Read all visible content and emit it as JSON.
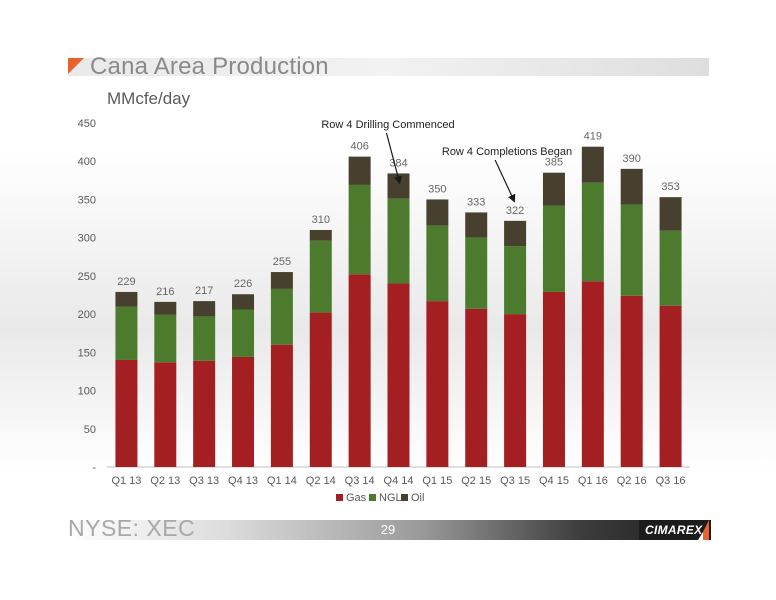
{
  "slide": {
    "title": "Cana Area Production",
    "subtitle": "MMcfe/day",
    "footer_ticker": "NYSE: XEC",
    "page_number": "29",
    "logo_text": "CIMAREX"
  },
  "colors": {
    "gas": "#a31f22",
    "ngl": "#4d7b2e",
    "oil": "#47402f",
    "axis_text": "#595959",
    "label_text": "#666666",
    "accent": "#e8622c"
  },
  "chart_data": {
    "type": "bar",
    "stacked": true,
    "categories": [
      "Q1 13",
      "Q2 13",
      "Q3 13",
      "Q4 13",
      "Q1 14",
      "Q2 14",
      "Q3 14",
      "Q4 14",
      "Q1 15",
      "Q2 15",
      "Q3 15",
      "Q4 15",
      "Q1 16",
      "Q2 16",
      "Q3 16"
    ],
    "series": [
      {
        "name": "Gas",
        "values": [
          140,
          137,
          139,
          144,
          160,
          202,
          252,
          240,
          217,
          207,
          200,
          229,
          243,
          224,
          211
        ]
      },
      {
        "name": "NGL",
        "values": [
          70,
          62,
          58,
          62,
          73,
          94,
          117,
          111,
          99,
          93,
          89,
          113,
          129,
          119,
          98
        ]
      },
      {
        "name": "Oil",
        "values": [
          19,
          17,
          20,
          20,
          22,
          14,
          37,
          33,
          34,
          33,
          33,
          43,
          47,
          47,
          44
        ]
      }
    ],
    "totals": [
      229,
      216,
      217,
      226,
      255,
      310,
      406,
      384,
      350,
      333,
      322,
      385,
      419,
      390,
      353
    ],
    "ylim": [
      0,
      450
    ],
    "yticks": [
      {
        "value": 0,
        "label": "-"
      },
      {
        "value": 50,
        "label": "50"
      },
      {
        "value": 100,
        "label": "100"
      },
      {
        "value": 150,
        "label": "150"
      },
      {
        "value": 200,
        "label": "200"
      },
      {
        "value": 250,
        "label": "250"
      },
      {
        "value": 300,
        "label": "300"
      },
      {
        "value": 350,
        "label": "350"
      },
      {
        "value": 400,
        "label": "400"
      },
      {
        "value": 450,
        "label": "450"
      }
    ],
    "grid": false,
    "legend": "bottom",
    "annotations": [
      {
        "text": "Row 4 Drilling Commenced",
        "category": "Q4 14"
      },
      {
        "text": "Row 4 Completions Began",
        "category": "Q3 15"
      }
    ]
  }
}
